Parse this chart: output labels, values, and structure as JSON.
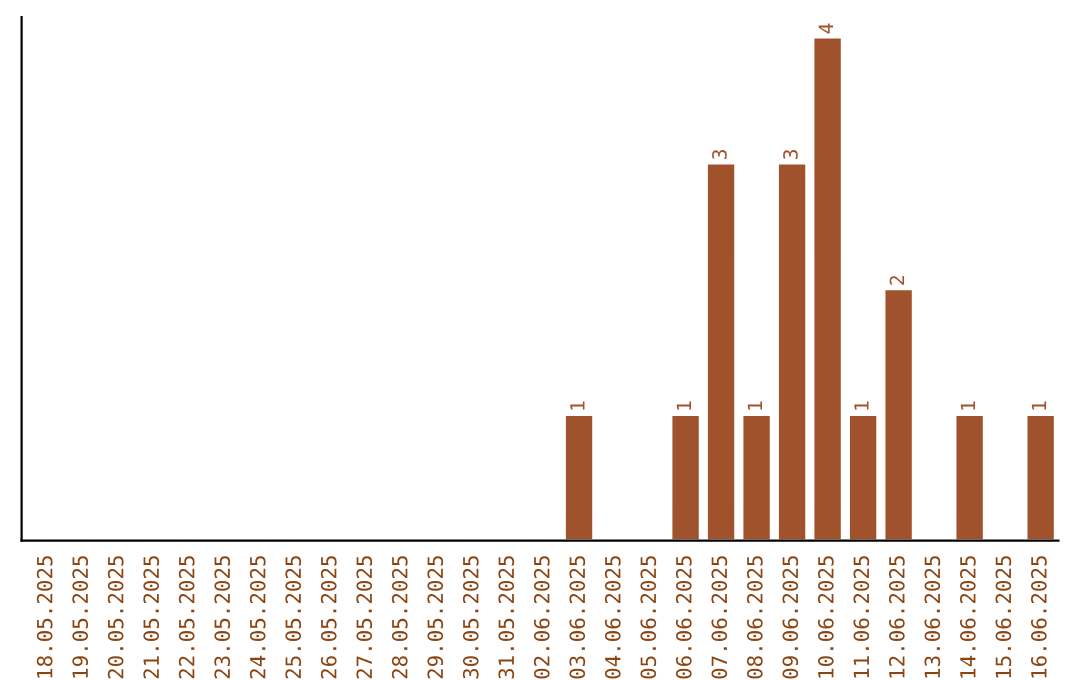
{
  "chart_data": {
    "type": "bar",
    "categories": [
      "18.05.2025",
      "19.05.2025",
      "20.05.2025",
      "21.05.2025",
      "22.05.2025",
      "23.05.2025",
      "24.05.2025",
      "25.05.2025",
      "26.05.2025",
      "27.05.2025",
      "28.05.2025",
      "29.05.2025",
      "30.05.2025",
      "31.05.2025",
      "02.06.2025",
      "03.06.2025",
      "04.06.2025",
      "05.06.2025",
      "06.06.2025",
      "07.06.2025",
      "08.06.2025",
      "09.06.2025",
      "10.06.2025",
      "11.06.2025",
      "12.06.2025",
      "13.06.2025",
      "14.06.2025",
      "15.06.2025",
      "16.06.2025"
    ],
    "values": [
      null,
      null,
      null,
      null,
      null,
      null,
      null,
      null,
      null,
      null,
      null,
      null,
      null,
      null,
      null,
      1,
      null,
      null,
      1,
      3,
      1,
      3,
      4,
      1,
      2,
      null,
      1,
      null,
      1
    ],
    "value_labels": [
      null,
      null,
      null,
      null,
      null,
      null,
      null,
      null,
      null,
      null,
      null,
      null,
      null,
      null,
      null,
      "1",
      null,
      null,
      "1",
      "3",
      "1",
      "3",
      "4",
      "1",
      "2",
      null,
      "1",
      null,
      "1"
    ],
    "color": "#a0522d",
    "tick_labels": "x",
    "grid": false,
    "legend": false
  }
}
